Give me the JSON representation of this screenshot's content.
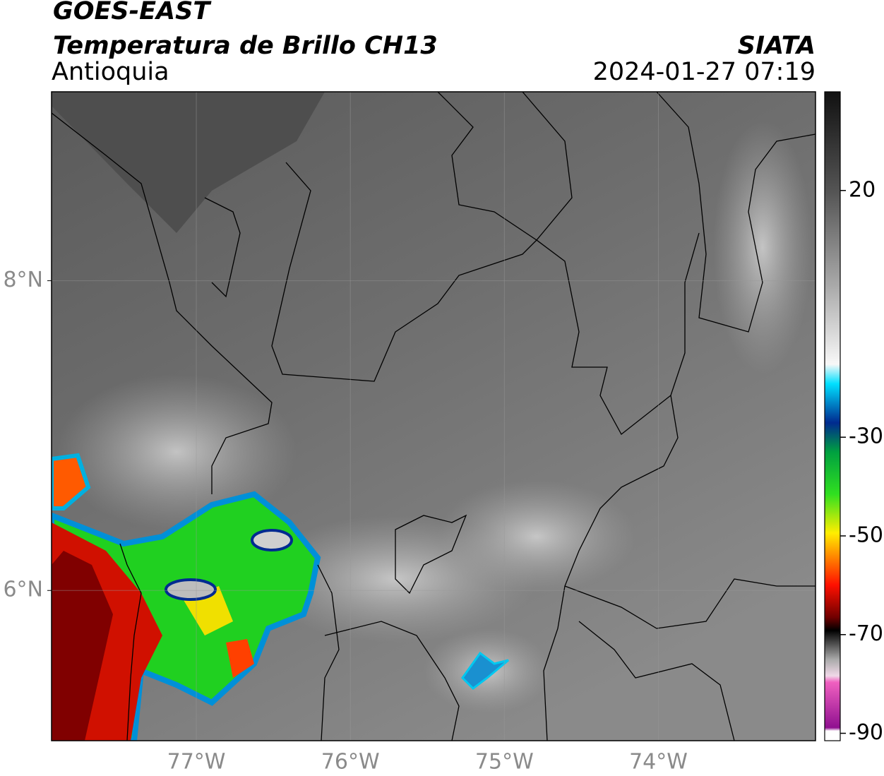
{
  "header": {
    "title": "GOES-EAST",
    "subtitle": "Temperatura de Brillo CH13",
    "region": "Antioquia",
    "source": "SIATA",
    "datetime": "2024-01-27 07:19"
  },
  "map": {
    "xlim": [
      -77.94,
      -72.98
    ],
    "ylim": [
      5.03,
      9.22
    ],
    "xticks": [
      {
        "value": -77,
        "label": "77°W"
      },
      {
        "value": -76,
        "label": "76°W"
      },
      {
        "value": -75,
        "label": "75°W"
      },
      {
        "value": -74,
        "label": "74°W"
      }
    ],
    "yticks": [
      {
        "value": 8,
        "label": "8°N"
      },
      {
        "value": 6,
        "label": "6°N"
      }
    ],
    "grid": true
  },
  "colorbar": {
    "lim": [
      -91.5,
      40
    ],
    "ticks": [
      20,
      -30,
      -50,
      -70,
      -90
    ]
  }
}
